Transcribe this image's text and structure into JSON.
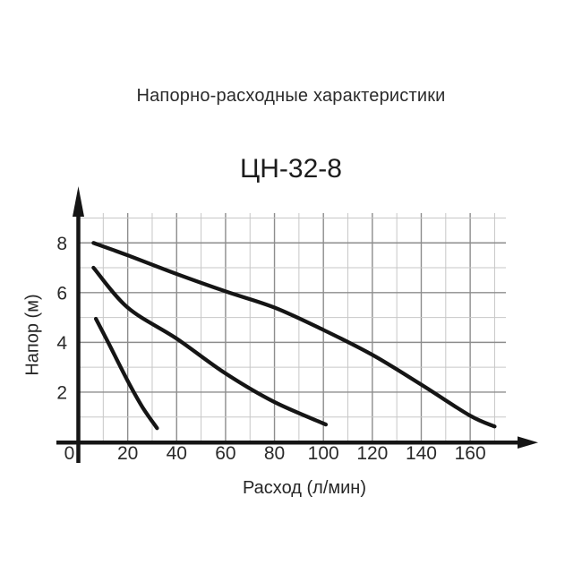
{
  "page_title": "Напорно-расходные характеристики",
  "chart_data": {
    "type": "line",
    "title": "ЦН-32-8",
    "xlabel": "Расход (л/мин)",
    "ylabel": "Напор (м)",
    "xlim": [
      0,
      175
    ],
    "ylim": [
      0,
      9.2
    ],
    "x_ticks": [
      0,
      20,
      40,
      60,
      80,
      100,
      120,
      140,
      160
    ],
    "y_ticks": [
      8,
      6,
      4,
      2
    ],
    "grid": {
      "on": true,
      "x_minor_step": 10,
      "x_major_step": 20,
      "y_minor_step": 1,
      "y_major_step": 2,
      "x_grid_max": 170,
      "y_grid_max": 9
    },
    "legend": "none",
    "series": [
      {
        "name": "curve-1-top",
        "points": [
          [
            6,
            8.0
          ],
          [
            20,
            7.5
          ],
          [
            40,
            6.75
          ],
          [
            60,
            6.05
          ],
          [
            80,
            5.4
          ],
          [
            100,
            4.5
          ],
          [
            120,
            3.5
          ],
          [
            140,
            2.3
          ],
          [
            160,
            1.05
          ],
          [
            170,
            0.62
          ]
        ]
      },
      {
        "name": "curve-2-middle",
        "points": [
          [
            6,
            7.0
          ],
          [
            20,
            5.4
          ],
          [
            40,
            4.15
          ],
          [
            60,
            2.75
          ],
          [
            80,
            1.6
          ],
          [
            101,
            0.7
          ]
        ]
      },
      {
        "name": "curve-3-bottom",
        "points": [
          [
            7,
            4.95
          ],
          [
            12,
            4.0
          ],
          [
            20,
            2.45
          ],
          [
            26,
            1.4
          ],
          [
            32,
            0.55
          ]
        ]
      }
    ],
    "colors": {
      "curve": "#151515",
      "axis": "#151515",
      "grid_minor": "#c7c7c7",
      "grid_major": "#8d8d8d",
      "text": "#2a2a2a",
      "background": "#ffffff"
    }
  }
}
